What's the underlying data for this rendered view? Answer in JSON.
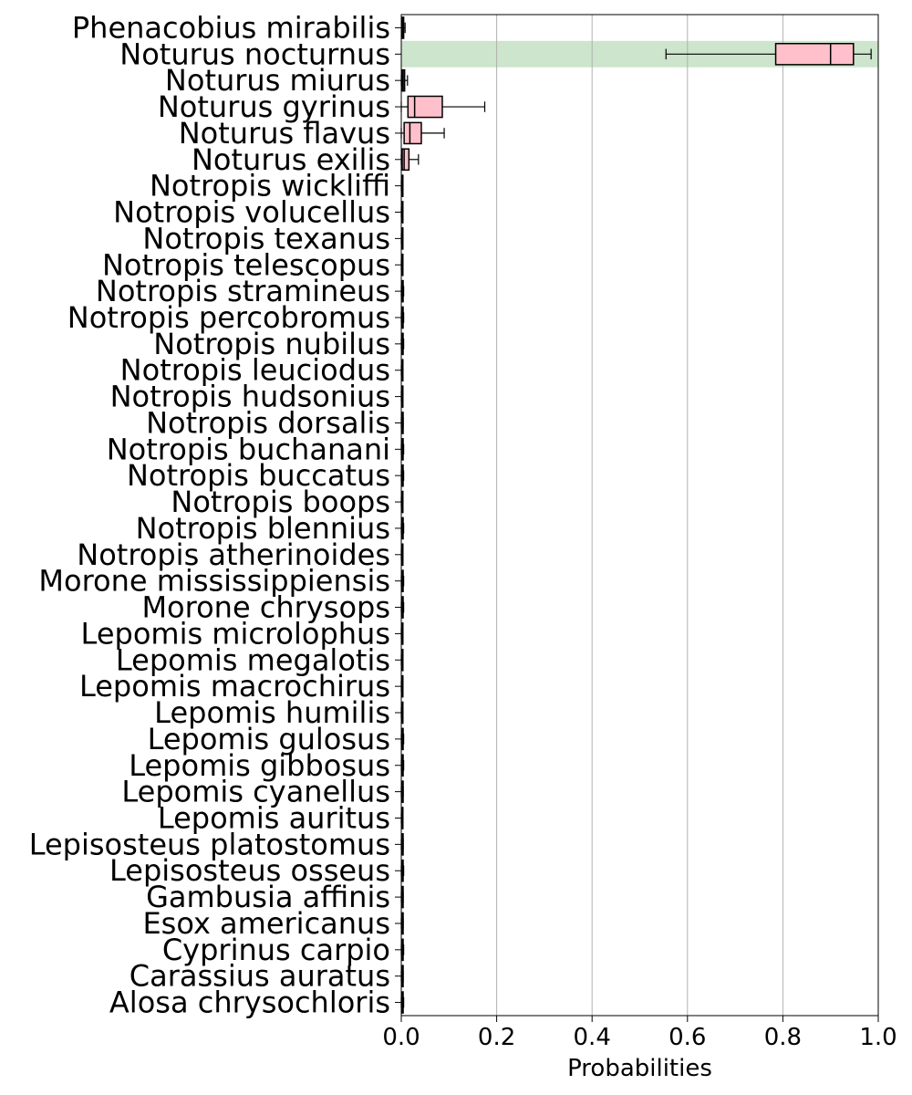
{
  "chart_data": {
    "type": "boxplot",
    "orientation": "horizontal",
    "xlabel": "Probabilities",
    "xlim": [
      0,
      1
    ],
    "xticks": [
      0.0,
      0.2,
      0.4,
      0.6,
      0.8,
      1.0
    ],
    "xtick_labels": [
      "0.0",
      "0.2",
      "0.4",
      "0.6",
      "0.8",
      "1.0"
    ],
    "grid": "vertical",
    "highlight": {
      "category": "Noturus nocturnus",
      "color": "#cce5cc"
    },
    "box_color": "#ffc0cb",
    "line_color": "#000000",
    "categories": [
      "Phenacobius mirabilis",
      "Noturus nocturnus",
      "Noturus miurus",
      "Noturus gyrinus",
      "Noturus flavus",
      "Noturus exilis",
      "Notropis wickliffi",
      "Notropis volucellus",
      "Notropis texanus",
      "Notropis telescopus",
      "Notropis stramineus",
      "Notropis percobromus",
      "Notropis nubilus",
      "Notropis leuciodus",
      "Notropis hudsonius",
      "Notropis dorsalis",
      "Notropis buchanani",
      "Notropis buccatus",
      "Notropis boops",
      "Notropis blennius",
      "Notropis atherinoides",
      "Morone mississippiensis",
      "Morone chrysops",
      "Lepomis microlophus",
      "Lepomis megalotis",
      "Lepomis macrochirus",
      "Lepomis humilis",
      "Lepomis gulosus",
      "Lepomis gibbosus",
      "Lepomis cyanellus",
      "Lepomis auritus",
      "Lepisosteus platostomus",
      "Lepisosteus osseus",
      "Gambusia affinis",
      "Esox americanus",
      "Cyprinus carpio",
      "Carassius auratus",
      "Alosa chrysochloris"
    ],
    "boxes": [
      [
        0.001,
        0.002,
        0.003,
        0.005,
        0.008
      ],
      [
        0.555,
        0.785,
        0.9,
        0.948,
        0.985
      ],
      [
        0.0,
        0.002,
        0.004,
        0.007,
        0.013
      ],
      [
        0.0,
        0.014,
        0.028,
        0.086,
        0.175
      ],
      [
        0.0,
        0.006,
        0.018,
        0.042,
        0.09
      ],
      [
        0.0,
        0.002,
        0.006,
        0.016,
        0.036
      ],
      [
        0.0,
        0.0005,
        0.001,
        0.002,
        0.003
      ],
      [
        0.0,
        0.0005,
        0.001,
        0.002,
        0.003
      ],
      [
        0.0,
        0.0005,
        0.001,
        0.002,
        0.003
      ],
      [
        0.0,
        0.0005,
        0.001,
        0.002,
        0.003
      ],
      [
        0.0,
        0.001,
        0.002,
        0.003,
        0.005
      ],
      [
        0.0,
        0.001,
        0.002,
        0.003,
        0.005
      ],
      [
        0.0,
        0.001,
        0.002,
        0.003,
        0.005
      ],
      [
        0.0,
        0.0005,
        0.001,
        0.002,
        0.003
      ],
      [
        0.0,
        0.0005,
        0.001,
        0.002,
        0.003
      ],
      [
        0.0,
        0.001,
        0.002,
        0.003,
        0.004
      ],
      [
        0.0,
        0.001,
        0.002,
        0.003,
        0.005
      ],
      [
        0.0,
        0.001,
        0.002,
        0.003,
        0.005
      ],
      [
        0.0,
        0.0005,
        0.001,
        0.002,
        0.003
      ],
      [
        0.0,
        0.001,
        0.002,
        0.003,
        0.005
      ],
      [
        0.0,
        0.0005,
        0.001,
        0.002,
        0.003
      ],
      [
        0.0,
        0.001,
        0.002,
        0.003,
        0.005
      ],
      [
        0.0,
        0.001,
        0.002,
        0.003,
        0.005
      ],
      [
        0.0,
        0.0005,
        0.001,
        0.002,
        0.003
      ],
      [
        0.0,
        0.0005,
        0.001,
        0.002,
        0.003
      ],
      [
        0.0,
        0.0005,
        0.001,
        0.002,
        0.003
      ],
      [
        0.0,
        0.0005,
        0.001,
        0.002,
        0.003
      ],
      [
        0.0,
        0.001,
        0.002,
        0.003,
        0.005
      ],
      [
        0.0,
        0.001,
        0.002,
        0.003,
        0.005
      ],
      [
        0.0,
        0.001,
        0.002,
        0.003,
        0.004
      ],
      [
        0.0,
        0.0005,
        0.001,
        0.002,
        0.003
      ],
      [
        0.0,
        0.001,
        0.002,
        0.003,
        0.004
      ],
      [
        0.0,
        0.001,
        0.002,
        0.003,
        0.005
      ],
      [
        0.0,
        0.001,
        0.002,
        0.003,
        0.004
      ],
      [
        0.0,
        0.001,
        0.002,
        0.003,
        0.004
      ],
      [
        0.0,
        0.001,
        0.002,
        0.003,
        0.005
      ],
      [
        0.0,
        0.001,
        0.002,
        0.003,
        0.004
      ],
      [
        0.0,
        0.001,
        0.002,
        0.003,
        0.005
      ]
    ]
  }
}
